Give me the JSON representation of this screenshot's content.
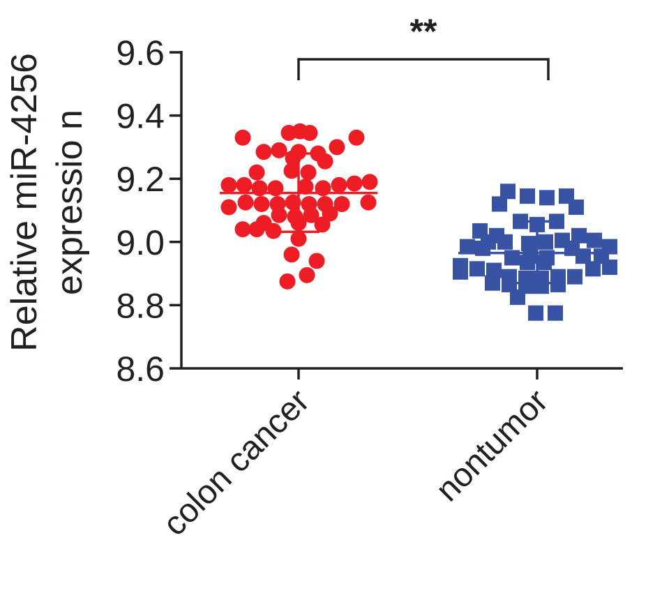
{
  "chart_data": {
    "type": "scatter",
    "ylabel_lines": [
      "Relative miR-4256",
      "expressio n"
    ],
    "xlabel": "",
    "ylim": [
      8.6,
      9.6
    ],
    "yticks": [
      "8.6",
      "8.8",
      "9.0",
      "9.2",
      "9.4",
      "9.6"
    ],
    "yticks_values": [
      8.6,
      8.8,
      9.0,
      9.2,
      9.4,
      9.6
    ],
    "categories": [
      "colon cancer",
      "nontumor"
    ],
    "grid": false,
    "legend": "none",
    "significance": "**",
    "series": [
      {
        "category": "colon cancer",
        "marker": "circle",
        "color": "#ee1c25",
        "mean": 9.155,
        "sd_low": 9.032,
        "sd_high": 9.28,
        "points": [
          {
            "dx": -80,
            "y": 9.33
          },
          {
            "dx": 83,
            "y": 9.33
          },
          {
            "dx": -14,
            "y": 9.345
          },
          {
            "dx": 2,
            "y": 9.35
          },
          {
            "dx": 16,
            "y": 9.345
          },
          {
            "dx": -50,
            "y": 9.285
          },
          {
            "dx": -28,
            "y": 9.29
          },
          {
            "dx": 0,
            "y": 9.285
          },
          {
            "dx": 28,
            "y": 9.28
          },
          {
            "dx": 55,
            "y": 9.3
          },
          {
            "dx": -8,
            "y": 9.265
          },
          {
            "dx": 38,
            "y": 9.255
          },
          {
            "dx": -60,
            "y": 9.22
          },
          {
            "dx": -10,
            "y": 9.225
          },
          {
            "dx": 14,
            "y": 9.22
          },
          {
            "dx": -100,
            "y": 9.18
          },
          {
            "dx": -78,
            "y": 9.18
          },
          {
            "dx": -56,
            "y": 9.17
          },
          {
            "dx": -33,
            "y": 9.17
          },
          {
            "dx": 10,
            "y": 9.175
          },
          {
            "dx": 35,
            "y": 9.17
          },
          {
            "dx": 58,
            "y": 9.18
          },
          {
            "dx": 80,
            "y": 9.185
          },
          {
            "dx": 102,
            "y": 9.19
          },
          {
            "dx": -76,
            "y": 9.125
          },
          {
            "dx": -53,
            "y": 9.12
          },
          {
            "dx": -30,
            "y": 9.12
          },
          {
            "dx": -8,
            "y": 9.125
          },
          {
            "dx": 15,
            "y": 9.12
          },
          {
            "dx": 38,
            "y": 9.12
          },
          {
            "dx": 62,
            "y": 9.12
          },
          {
            "dx": 100,
            "y": 9.125
          },
          {
            "dx": -100,
            "y": 9.11
          },
          {
            "dx": -28,
            "y": 9.085
          },
          {
            "dx": -5,
            "y": 9.08
          },
          {
            "dx": 18,
            "y": 9.085
          },
          {
            "dx": 45,
            "y": 9.09
          },
          {
            "dx": -50,
            "y": 9.06
          },
          {
            "dx": 0,
            "y": 9.06
          },
          {
            "dx": 34,
            "y": 9.055
          },
          {
            "dx": -80,
            "y": 9.04
          },
          {
            "dx": -60,
            "y": 9.04
          },
          {
            "dx": -36,
            "y": 9.035
          },
          {
            "dx": 0,
            "y": 9.01
          },
          {
            "dx": -10,
            "y": 8.96
          },
          {
            "dx": 26,
            "y": 8.94
          },
          {
            "dx": -16,
            "y": 8.875
          },
          {
            "dx": 12,
            "y": 8.895
          }
        ]
      },
      {
        "category": "nontumor",
        "marker": "square",
        "color": "#3853a4",
        "mean": 8.965,
        "sd_low": 8.87,
        "sd_high": 9.065,
        "points": [
          {
            "dx": -42,
            "y": 9.16
          },
          {
            "dx": -14,
            "y": 9.145
          },
          {
            "dx": 14,
            "y": 9.14
          },
          {
            "dx": 42,
            "y": 9.145
          },
          {
            "dx": -54,
            "y": 9.12
          },
          {
            "dx": 56,
            "y": 9.11
          },
          {
            "dx": -24,
            "y": 9.065
          },
          {
            "dx": 0,
            "y": 9.055
          },
          {
            "dx": 28,
            "y": 9.065
          },
          {
            "dx": -82,
            "y": 9.035
          },
          {
            "dx": -58,
            "y": 9.02
          },
          {
            "dx": 60,
            "y": 9.02
          },
          {
            "dx": -70,
            "y": 9.0
          },
          {
            "dx": -46,
            "y": 9.0
          },
          {
            "dx": -12,
            "y": 8.995
          },
          {
            "dx": 12,
            "y": 9.0
          },
          {
            "dx": 36,
            "y": 9.005
          },
          {
            "dx": 82,
            "y": 9.005
          },
          {
            "dx": -100,
            "y": 8.985
          },
          {
            "dx": -78,
            "y": 8.98
          },
          {
            "dx": 50,
            "y": 8.98
          },
          {
            "dx": 104,
            "y": 8.985
          },
          {
            "dx": -36,
            "y": 8.95
          },
          {
            "dx": -10,
            "y": 8.955
          },
          {
            "dx": 14,
            "y": 8.95
          },
          {
            "dx": 66,
            "y": 8.955
          },
          {
            "dx": 92,
            "y": 8.955
          },
          {
            "dx": -110,
            "y": 8.925
          },
          {
            "dx": -86,
            "y": 8.915
          },
          {
            "dx": -62,
            "y": 8.91
          },
          {
            "dx": -14,
            "y": 8.935
          },
          {
            "dx": 10,
            "y": 8.935
          },
          {
            "dx": 80,
            "y": 8.915
          },
          {
            "dx": 104,
            "y": 8.92
          },
          {
            "dx": -110,
            "y": 8.905
          },
          {
            "dx": -40,
            "y": 8.89
          },
          {
            "dx": -16,
            "y": 8.885
          },
          {
            "dx": 6,
            "y": 8.885
          },
          {
            "dx": 30,
            "y": 8.89
          },
          {
            "dx": 54,
            "y": 8.89
          },
          {
            "dx": -64,
            "y": 8.87
          },
          {
            "dx": -40,
            "y": 8.865
          },
          {
            "dx": -16,
            "y": 8.86
          },
          {
            "dx": 6,
            "y": 8.86
          },
          {
            "dx": 30,
            "y": 8.865
          },
          {
            "dx": -28,
            "y": 8.825
          },
          {
            "dx": -2,
            "y": 8.775
          },
          {
            "dx": 26,
            "y": 8.775
          }
        ]
      }
    ]
  }
}
